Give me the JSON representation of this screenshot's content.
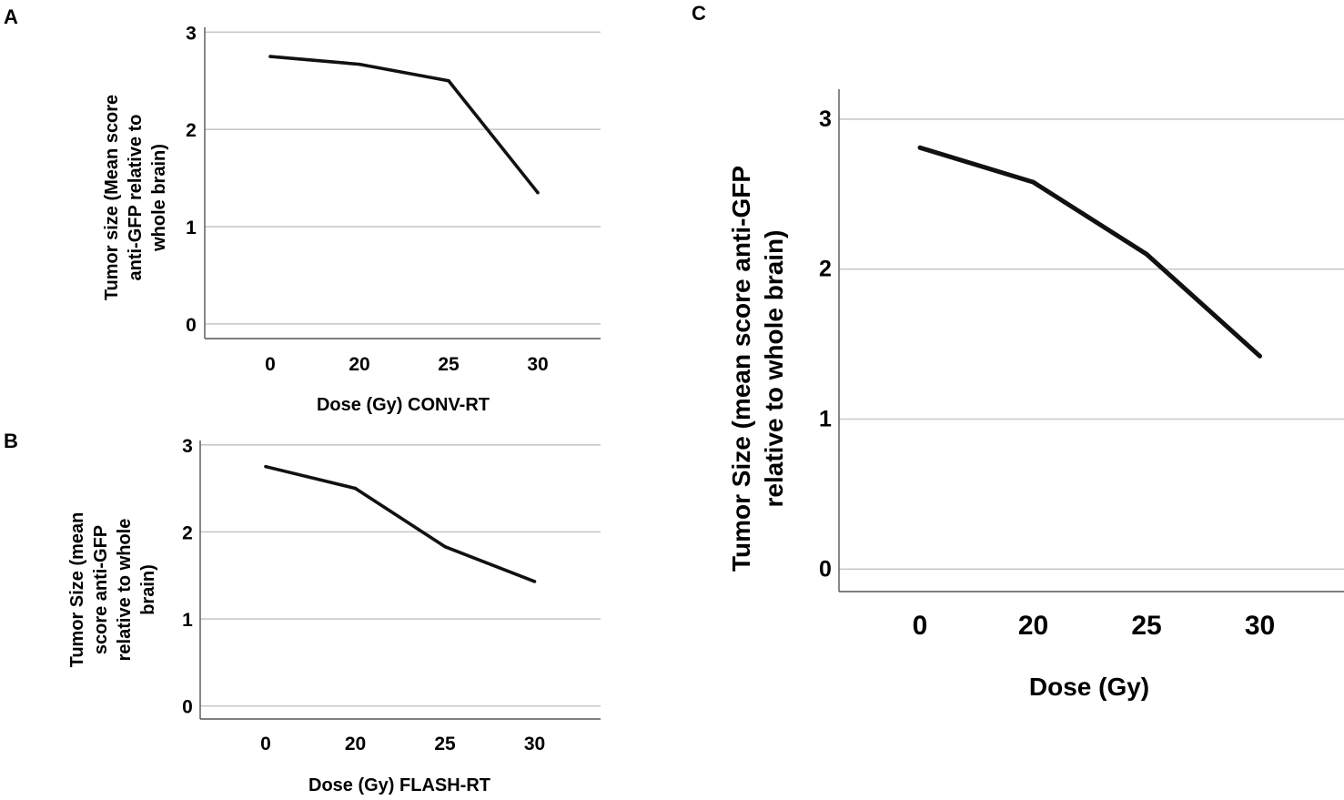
{
  "panels": [
    {
      "label": "A"
    },
    {
      "label": "B"
    },
    {
      "label": "C"
    }
  ],
  "chart_data": [
    {
      "type": "line",
      "panel": "A",
      "categories": [
        "0",
        "20",
        "25",
        "30"
      ],
      "values": [
        2.75,
        2.67,
        2.5,
        1.35
      ],
      "title": "",
      "xlabel": "Dose (Gy) CONV-RT",
      "ylabel_lines": [
        "Tumor size (Mean score",
        "anti-GFP relative to",
        "whole brain)"
      ],
      "yticks": [
        "0",
        "1",
        "2",
        "3"
      ],
      "ylim": [
        -0.15,
        3.05
      ],
      "grid": true
    },
    {
      "type": "line",
      "panel": "B",
      "categories": [
        "0",
        "20",
        "25",
        "30"
      ],
      "values": [
        2.75,
        2.5,
        1.83,
        1.43
      ],
      "title": "",
      "xlabel": "Dose (Gy) FLASH-RT",
      "ylabel_lines": [
        "Tumor Size (mean",
        "score anti-GFP",
        "relative to whole",
        "brain)"
      ],
      "yticks": [
        "0",
        "1",
        "2",
        "3"
      ],
      "ylim": [
        -0.15,
        3.05
      ],
      "grid": true
    },
    {
      "type": "line",
      "panel": "C",
      "categories": [
        "0",
        "20",
        "25",
        "30"
      ],
      "values": [
        2.81,
        2.58,
        2.1,
        1.42
      ],
      "title": "",
      "xlabel": "Dose (Gy)",
      "ylabel_lines": [
        "Tumor Size (mean score anti-GFP",
        "relative to whole brain)"
      ],
      "yticks": [
        "0",
        "1",
        "2",
        "3"
      ],
      "ylim": [
        -0.15,
        3.2
      ],
      "grid": true
    }
  ]
}
